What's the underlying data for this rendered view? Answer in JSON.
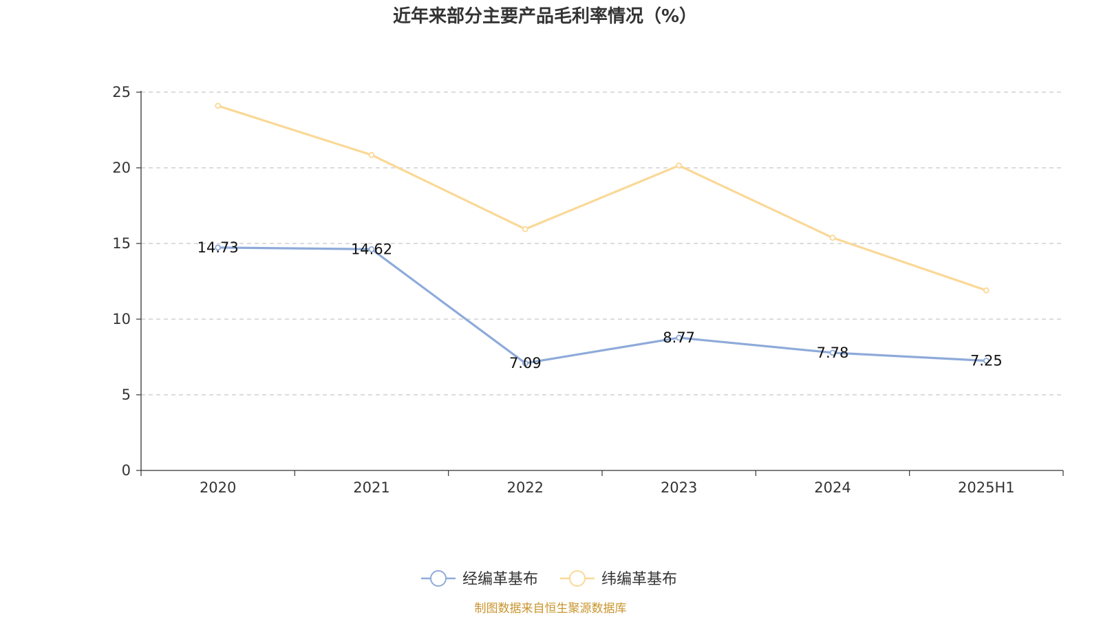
{
  "chart_data": {
    "type": "line",
    "title": "近年来部分主要产品毛利率情况（%）",
    "categories": [
      "2020",
      "2021",
      "2022",
      "2023",
      "2024",
      "2025H1"
    ],
    "ylim": [
      0,
      25
    ],
    "yticks": [
      0,
      5,
      10,
      15,
      20,
      25
    ],
    "grid": true,
    "legend_position": "bottom-center",
    "series": [
      {
        "name": "经编革基布",
        "values": [
          14.73,
          14.62,
          7.09,
          8.77,
          7.78,
          7.25
        ],
        "labels": [
          "14.73",
          "14.62",
          "7.09",
          "8.77",
          "7.78",
          "7.25"
        ],
        "color": "#8eaad9"
      },
      {
        "name": "纬编革基布",
        "values": [
          24.1,
          20.85,
          15.95,
          20.15,
          15.38,
          11.9
        ],
        "color": "#fad896"
      }
    ]
  },
  "source_text": "制图数据来自恒生聚源数据库",
  "source_color": "#c8952e"
}
